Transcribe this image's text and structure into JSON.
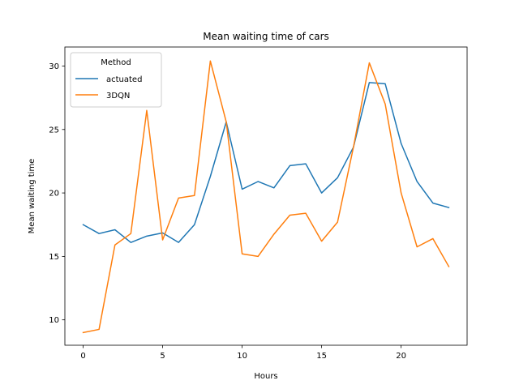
{
  "chart_data": {
    "type": "line",
    "title": "Mean waiting time of cars",
    "xlabel": "Hours",
    "ylabel": "Mean waiting time",
    "xlim": [
      -1.15,
      24.15
    ],
    "ylim": [
      8.0,
      31.5
    ],
    "xticks": [
      0,
      5,
      10,
      15,
      20
    ],
    "yticks": [
      10,
      15,
      20,
      25,
      30
    ],
    "x": [
      0,
      1,
      2,
      3,
      4,
      5,
      6,
      7,
      8,
      9,
      10,
      11,
      12,
      13,
      14,
      15,
      16,
      17,
      18,
      19,
      20,
      21,
      22,
      23
    ],
    "legend": {
      "title": "Method",
      "placement": "upper left"
    },
    "grid": false,
    "series": [
      {
        "name": "actuated",
        "color": "#1f77b4",
        "values": [
          17.5,
          16.8,
          17.1,
          16.1,
          16.6,
          16.85,
          16.1,
          17.5,
          21.3,
          25.6,
          20.3,
          20.9,
          20.4,
          22.15,
          22.3,
          20.0,
          21.2,
          23.6,
          28.7,
          28.6,
          23.9,
          20.9,
          19.2,
          18.85
        ]
      },
      {
        "name": "3DQN",
        "color": "#ff7f0e",
        "values": [
          9.0,
          9.25,
          15.9,
          16.8,
          26.5,
          16.3,
          19.6,
          19.8,
          30.4,
          25.6,
          15.2,
          15.0,
          16.75,
          18.25,
          18.4,
          16.2,
          17.7,
          23.6,
          30.25,
          27.0,
          20.0,
          15.75,
          16.4,
          14.2
        ]
      }
    ]
  }
}
